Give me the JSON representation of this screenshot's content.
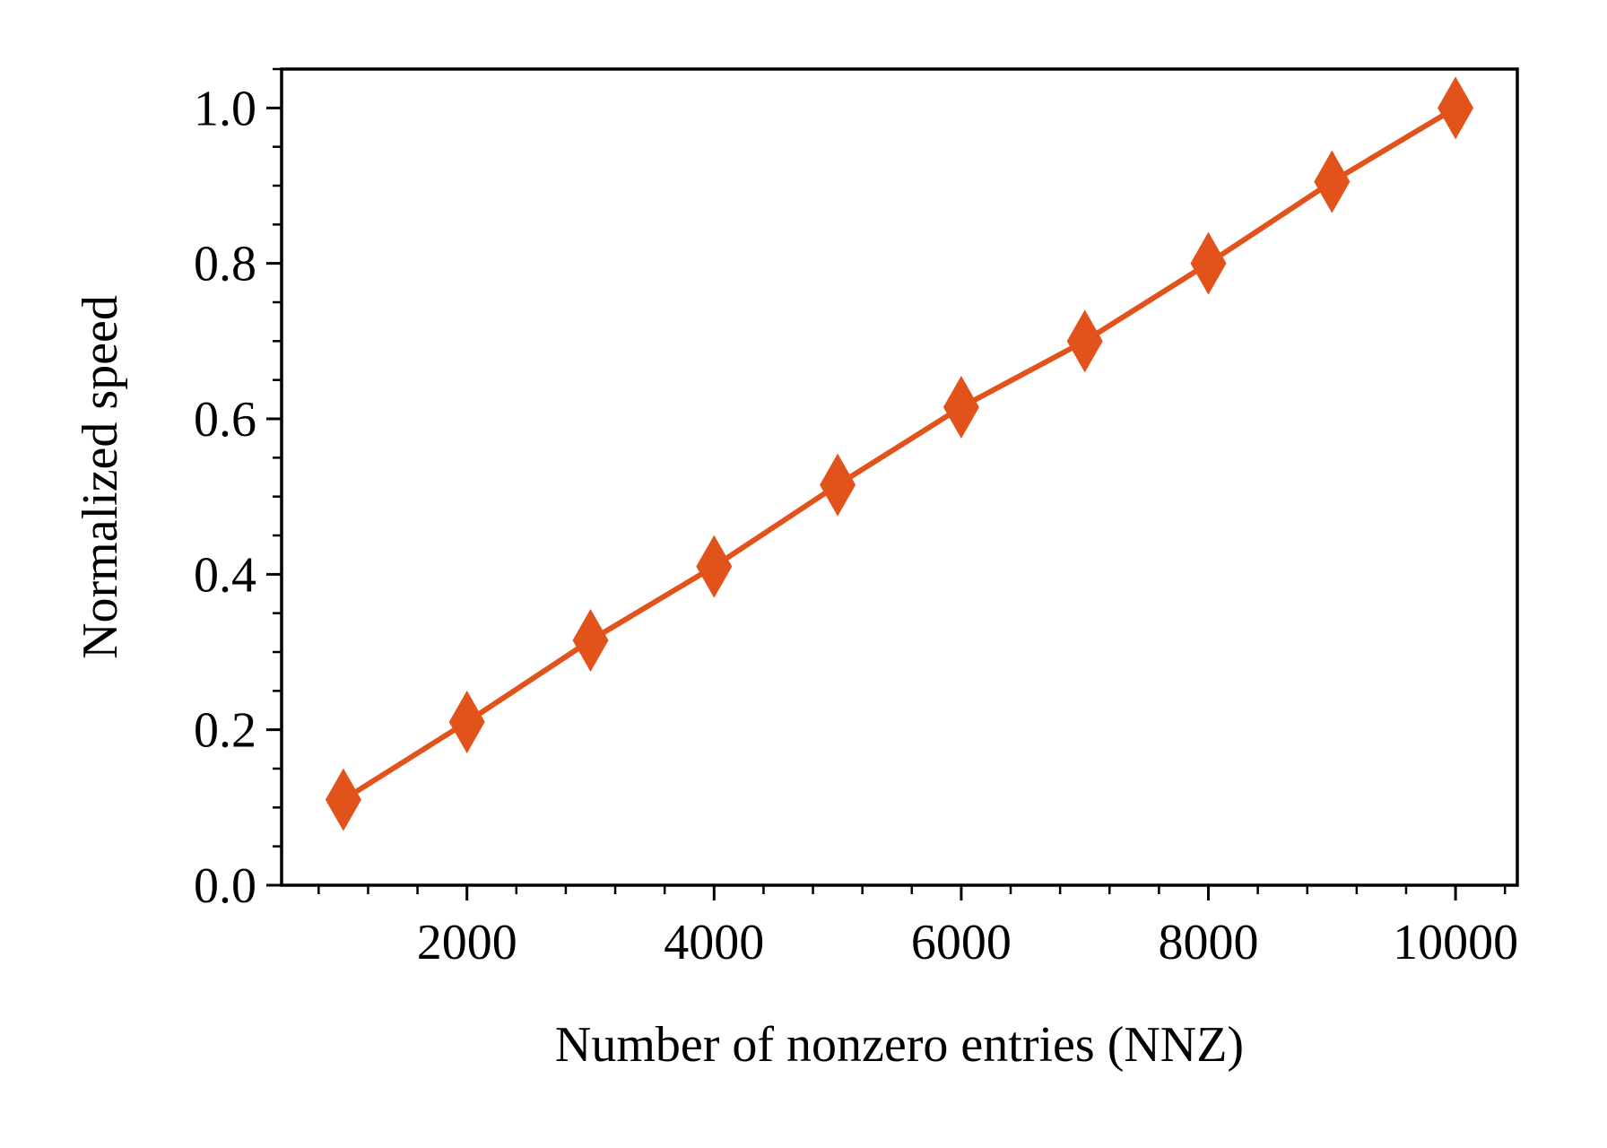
{
  "chart_data": {
    "type": "line",
    "title": "",
    "xlabel": "Number of nonzero entries (NNZ)",
    "ylabel": "Normalized speed",
    "xlim": [
      500,
      10500
    ],
    "ylim": [
      0.0,
      1.05
    ],
    "x_ticks": [
      2000,
      4000,
      6000,
      8000,
      10000
    ],
    "x_tick_labels": [
      "2000",
      "4000",
      "6000",
      "8000",
      "10000"
    ],
    "x_minor_step": 400,
    "y_ticks": [
      0.0,
      0.2,
      0.4,
      0.6,
      0.8,
      1.0
    ],
    "y_tick_labels": [
      "0.0",
      "0.2",
      "0.4",
      "0.6",
      "0.8",
      "1.0"
    ],
    "y_minor_step": 0.05,
    "grid": false,
    "legend": "none",
    "marker": "diamond",
    "series": [
      {
        "color": "#e2531b",
        "x": [
          1000,
          2000,
          3000,
          4000,
          5000,
          6000,
          7000,
          8000,
          9000,
          10000
        ],
        "y": [
          0.11,
          0.21,
          0.315,
          0.41,
          0.515,
          0.615,
          0.7,
          0.8,
          0.905,
          1.0
        ]
      }
    ]
  }
}
